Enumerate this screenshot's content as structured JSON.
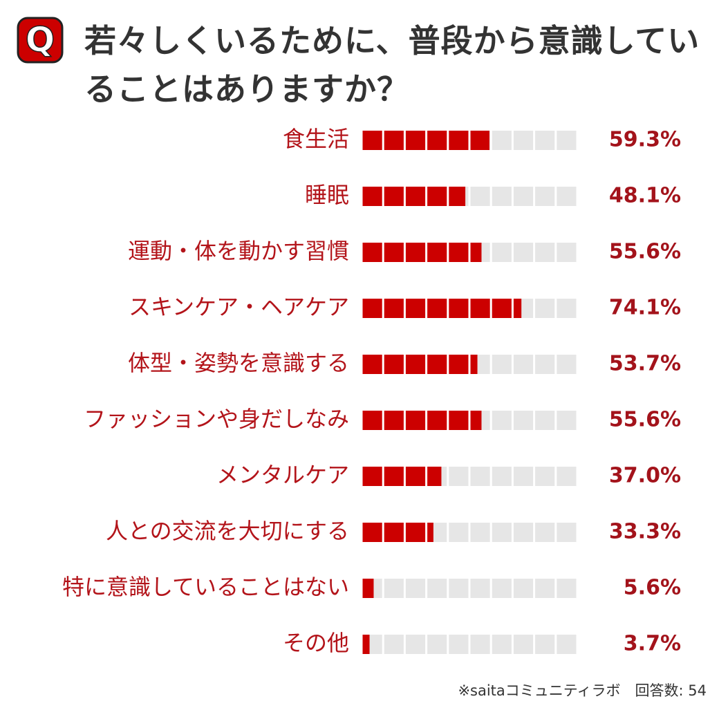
{
  "chart_data": {
    "type": "bar",
    "orientation": "horizontal",
    "icon_label": "Q",
    "title": "若々しくいるために、普段から意識していることはありますか？",
    "categories": [
      "食生活",
      "睡眠",
      "運動・体を動かす習慣",
      "スキンケア・ヘアケア",
      "体型・姿勢を意識する",
      "ファッションや身だしなみ",
      "メンタルケア",
      "人との交流を大切にする",
      "特に意識していることはない",
      "その他"
    ],
    "values": [
      59.3,
      48.1,
      55.6,
      74.1,
      53.7,
      55.6,
      37.0,
      33.3,
      5.6,
      3.7
    ],
    "value_labels": [
      "59.3%",
      "48.1%",
      "55.6%",
      "74.1%",
      "53.7%",
      "55.6%",
      "37.0%",
      "33.3%",
      "5.6%",
      "3.7%"
    ],
    "color": "#cc0000",
    "track_color": "#e6e6e6",
    "xlim": [
      0,
      100
    ],
    "xticks": [
      0,
      10,
      20,
      30,
      40,
      50,
      60,
      70,
      80,
      90,
      100
    ],
    "grid": true,
    "note": "※saitaコミュニティラボ　回答数: 54"
  }
}
